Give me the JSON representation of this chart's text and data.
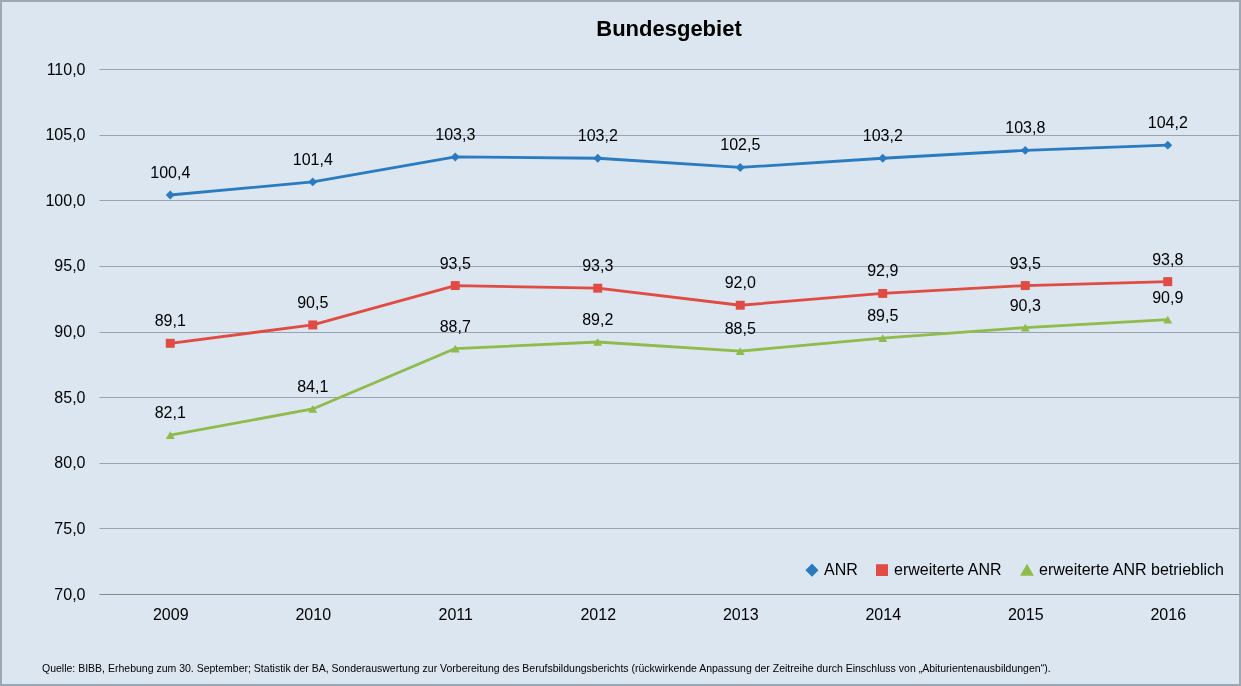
{
  "chart_data": {
    "type": "line",
    "title": "Bundesgebiet",
    "categories": [
      "2009",
      "2010",
      "2011",
      "2012",
      "2013",
      "2014",
      "2015",
      "2016"
    ],
    "series": [
      {
        "name": "ANR",
        "color": "#2a7bc0",
        "marker": "diamond",
        "values": [
          100.4,
          101.4,
          103.3,
          103.2,
          102.5,
          103.2,
          103.8,
          104.2
        ],
        "value_labels": [
          "100,4",
          "101,4",
          "103,3",
          "103,2",
          "102,5",
          "103,2",
          "103,8",
          "104,2"
        ]
      },
      {
        "name": "erweiterte ANR",
        "color": "#e04b43",
        "marker": "square",
        "values": [
          89.1,
          90.5,
          93.5,
          93.3,
          92.0,
          92.9,
          93.5,
          93.8
        ],
        "value_labels": [
          "89,1",
          "90,5",
          "93,5",
          "93,3",
          "92,0",
          "92,9",
          "93,5",
          "93,8"
        ]
      },
      {
        "name": "erweiterte ANR betrieblich",
        "color": "#8ebb4a",
        "marker": "triangle",
        "values": [
          82.1,
          84.1,
          88.7,
          89.2,
          88.5,
          89.5,
          90.3,
          90.9
        ],
        "value_labels": [
          "82,1",
          "84,1",
          "88,7",
          "89,2",
          "88,5",
          "89,5",
          "90,3",
          "90,9"
        ]
      }
    ],
    "ylim": [
      70,
      110
    ],
    "yticks": [
      {
        "value": 70,
        "label": "70,0"
      },
      {
        "value": 75,
        "label": "75,0"
      },
      {
        "value": 80,
        "label": "80,0"
      },
      {
        "value": 85,
        "label": "85,0"
      },
      {
        "value": 90,
        "label": "90,0"
      },
      {
        "value": 95,
        "label": "95,0"
      },
      {
        "value": 100,
        "label": "100,0"
      },
      {
        "value": 105,
        "label": "105,0"
      },
      {
        "value": 110,
        "label": "110,0"
      }
    ],
    "grid": "y",
    "legend": "bottom right",
    "line_style": "solid",
    "annotations": [
      "Quelle: BIBB, Erhebung zum 30. September; Statistik der BA, Sonderauswertung zur Vorbereitung des Berufsbildungsberichts (rückwirkende Anpassung der Zeitreihe durch Einschluss von „Abiturientenausbildungen“)."
    ]
  }
}
